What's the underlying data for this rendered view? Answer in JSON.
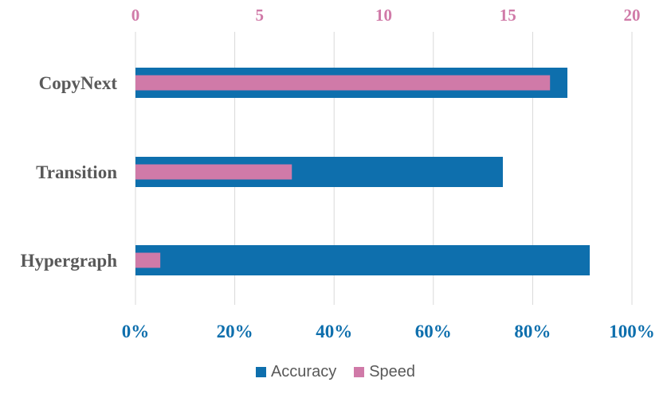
{
  "chart_data": {
    "type": "bar",
    "orientation": "horizontal",
    "categories": [
      "CopyNext",
      "Transition",
      "Hypergraph"
    ],
    "series": [
      {
        "name": "Accuracy",
        "axis": "bottom",
        "values": [
          87,
          74,
          91.5
        ],
        "color": "#0e6fad"
      },
      {
        "name": "Speed",
        "axis": "top",
        "values": [
          16.7,
          6.3,
          1.0
        ],
        "color": "#d07aa8"
      }
    ],
    "x_bottom": {
      "range": [
        0,
        100
      ],
      "ticks": [
        0,
        20,
        40,
        60,
        80,
        100
      ],
      "tick_labels": [
        "0%",
        "20%",
        "40%",
        "60%",
        "80%",
        "100%"
      ],
      "color": "#0e6fad"
    },
    "x_top": {
      "range": [
        0,
        20
      ],
      "ticks": [
        0,
        5,
        10,
        15,
        20
      ],
      "tick_labels": [
        "0",
        "5",
        "10",
        "15",
        "20"
      ],
      "color": "#d07aa8"
    },
    "grid": true,
    "legend": "bottom-center",
    "title": "",
    "xlabel": "",
    "ylabel": ""
  },
  "legend": {
    "items": [
      {
        "label": "Accuracy",
        "color": "#0e6fad"
      },
      {
        "label": "Speed",
        "color": "#d07aa8"
      }
    ]
  }
}
